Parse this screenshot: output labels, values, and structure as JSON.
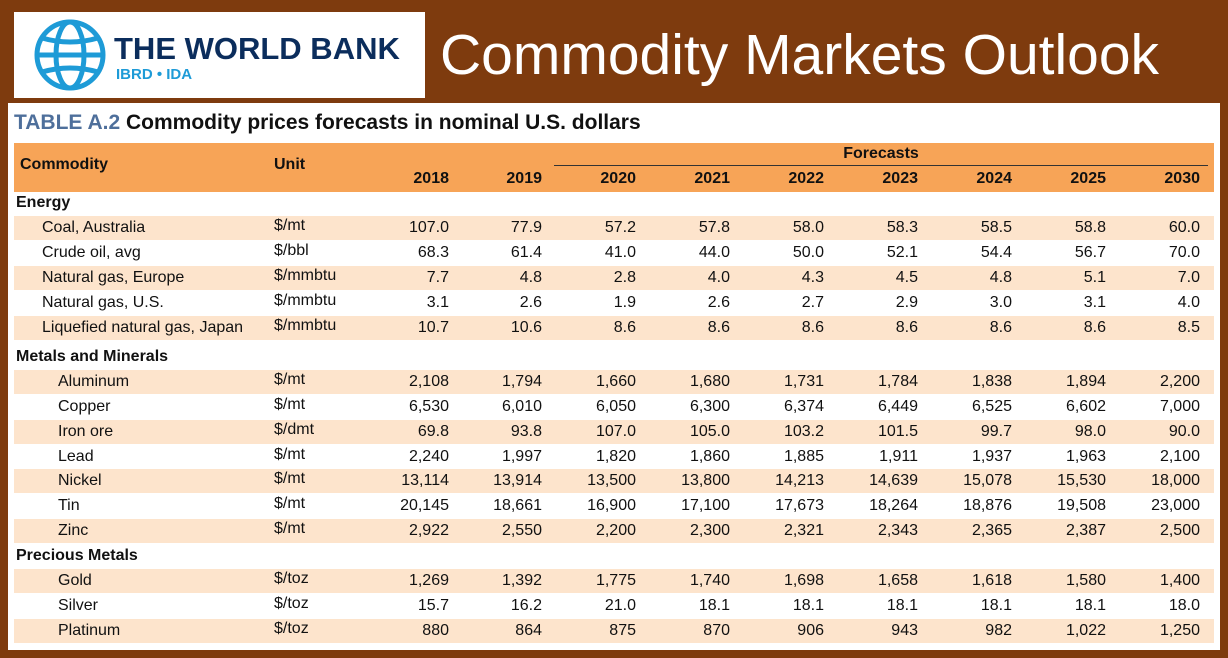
{
  "header": {
    "logo_name": "THE WORLD BANK",
    "logo_sub": "IBRD • IDA",
    "title": "Commodity Markets Outlook"
  },
  "table": {
    "label": "TABLE A.2",
    "title": "Commodity prices forecasts in nominal U.S. dollars",
    "columns": {
      "commodity": "Commodity",
      "unit": "Unit",
      "forecasts": "Forecasts",
      "years": [
        "2018",
        "2019",
        "2020",
        "2021",
        "2022",
        "2023",
        "2024",
        "2025",
        "2030"
      ]
    },
    "sections": [
      {
        "name": "Energy",
        "rows": [
          [
            "Coal, Australia",
            "$/mt",
            "107.0",
            "77.9",
            "57.2",
            "57.8",
            "58.0",
            "58.3",
            "58.5",
            "58.8",
            "60.0"
          ],
          [
            "Crude oil, avg",
            "$/bbl",
            "68.3",
            "61.4",
            "41.0",
            "44.0",
            "50.0",
            "52.1",
            "54.4",
            "56.7",
            "70.0"
          ],
          [
            "Natural gas, Europe",
            "$/mmbtu",
            "7.7",
            "4.8",
            "2.8",
            "4.0",
            "4.3",
            "4.5",
            "4.8",
            "5.1",
            "7.0"
          ],
          [
            "Natural gas, U.S.",
            "$/mmbtu",
            "3.1",
            "2.6",
            "1.9",
            "2.6",
            "2.7",
            "2.9",
            "3.0",
            "3.1",
            "4.0"
          ],
          [
            "Liquefied natural gas, Japan",
            "$/mmbtu",
            "10.7",
            "10.6",
            "8.6",
            "8.6",
            "8.6",
            "8.6",
            "8.6",
            "8.6",
            "8.5"
          ]
        ]
      },
      {
        "name": "Metals and Minerals",
        "rows": [
          [
            "Aluminum",
            "$/mt",
            "2,108",
            "1,794",
            "1,660",
            "1,680",
            "1,731",
            "1,784",
            "1,838",
            "1,894",
            "2,200"
          ],
          [
            "Copper",
            "$/mt",
            "6,530",
            "6,010",
            "6,050",
            "6,300",
            "6,374",
            "6,449",
            "6,525",
            "6,602",
            "7,000"
          ],
          [
            "Iron ore",
            "$/dmt",
            "69.8",
            "93.8",
            "107.0",
            "105.0",
            "103.2",
            "101.5",
            "99.7",
            "98.0",
            "90.0"
          ],
          [
            "Lead",
            "$/mt",
            "2,240",
            "1,997",
            "1,820",
            "1,860",
            "1,885",
            "1,911",
            "1,937",
            "1,963",
            "2,100"
          ],
          [
            "Nickel",
            "$/mt",
            "13,114",
            "13,914",
            "13,500",
            "13,800",
            "14,213",
            "14,639",
            "15,078",
            "15,530",
            "18,000"
          ],
          [
            "Tin",
            "$/mt",
            "20,145",
            "18,661",
            "16,900",
            "17,100",
            "17,673",
            "18,264",
            "18,876",
            "19,508",
            "23,000"
          ],
          [
            "Zinc",
            "$/mt",
            "2,922",
            "2,550",
            "2,200",
            "2,300",
            "2,321",
            "2,343",
            "2,365",
            "2,387",
            "2,500"
          ]
        ]
      },
      {
        "name": "Precious Metals",
        "rows": [
          [
            "Gold",
            "$/toz",
            "1,269",
            "1,392",
            "1,775",
            "1,740",
            "1,698",
            "1,658",
            "1,618",
            "1,580",
            "1,400"
          ],
          [
            "Silver",
            "$/toz",
            "15.7",
            "16.2",
            "21.0",
            "18.1",
            "18.1",
            "18.1",
            "18.1",
            "18.1",
            "18.0"
          ],
          [
            "Platinum",
            "$/toz",
            "880",
            "864",
            "875",
            "870",
            "906",
            "943",
            "982",
            "1,022",
            "1,250"
          ]
        ]
      }
    ]
  }
}
